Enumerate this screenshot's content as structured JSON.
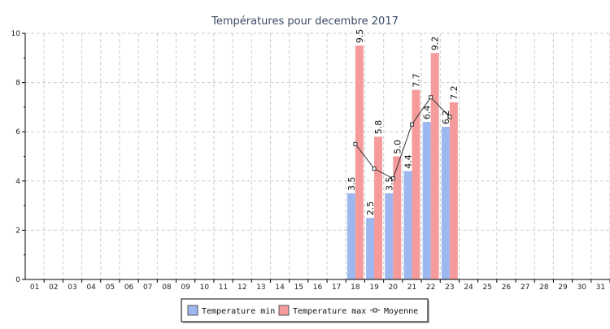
{
  "chart_data": {
    "type": "bar",
    "title": "Températures pour decembre 2017",
    "xlabel": "",
    "ylabel": "",
    "ylim": [
      0,
      10
    ],
    "yticks": [
      0,
      2,
      4,
      6,
      8,
      10
    ],
    "grid": true,
    "legend_position": "bottom-center",
    "categories": [
      "01",
      "02",
      "03",
      "04",
      "05",
      "06",
      "07",
      "08",
      "09",
      "10",
      "11",
      "12",
      "13",
      "14",
      "15",
      "16",
      "17",
      "18",
      "19",
      "20",
      "21",
      "22",
      "23",
      "24",
      "25",
      "26",
      "27",
      "28",
      "29",
      "30",
      "31"
    ],
    "series": [
      {
        "name": "Temperature min",
        "type": "bar",
        "color": "#9db8f0",
        "values": [
          null,
          null,
          null,
          null,
          null,
          null,
          null,
          null,
          null,
          null,
          null,
          null,
          null,
          null,
          null,
          null,
          null,
          3.5,
          2.5,
          3.5,
          4.4,
          6.4,
          6.2,
          null,
          null,
          null,
          null,
          null,
          null,
          null,
          null
        ],
        "labels": [
          "",
          "",
          "",
          "",
          "",
          "",
          "",
          "",
          "",
          "",
          "",
          "",
          "",
          "",
          "",
          "",
          "",
          "3.5",
          "2.5",
          "3.5",
          "4.4",
          "6.4",
          "6.2",
          "",
          "",
          "",
          "",
          "",
          "",
          "",
          ""
        ]
      },
      {
        "name": "Temperature max",
        "type": "bar",
        "color": "#f59b9b",
        "values": [
          null,
          null,
          null,
          null,
          null,
          null,
          null,
          null,
          null,
          null,
          null,
          null,
          null,
          null,
          null,
          null,
          null,
          9.5,
          5.8,
          5.0,
          7.7,
          9.2,
          7.2,
          null,
          null,
          null,
          null,
          null,
          null,
          null,
          null
        ],
        "labels": [
          "",
          "",
          "",
          "",
          "",
          "",
          "",
          "",
          "",
          "",
          "",
          "",
          "",
          "",
          "",
          "",
          "",
          "9.5",
          "5.8",
          "5.0",
          "7.7",
          "9.2",
          "7.2",
          "",
          "",
          "",
          "",
          "",
          "",
          "",
          ""
        ]
      },
      {
        "name": "Moyenne",
        "type": "line",
        "color": "#333333",
        "values": [
          null,
          null,
          null,
          null,
          null,
          null,
          null,
          null,
          null,
          null,
          null,
          null,
          null,
          null,
          null,
          null,
          null,
          5.5,
          4.5,
          4.1,
          6.3,
          7.4,
          6.6,
          null,
          null,
          null,
          null,
          null,
          null,
          null,
          null
        ]
      }
    ]
  },
  "legend": {
    "items": [
      {
        "label": "Temperature min",
        "color": "#9db8f0",
        "kind": "box"
      },
      {
        "label": "Temperature max",
        "color": "#f59b9b",
        "kind": "box"
      },
      {
        "label": "Moyenne",
        "color": "#333333",
        "kind": "line"
      }
    ]
  }
}
